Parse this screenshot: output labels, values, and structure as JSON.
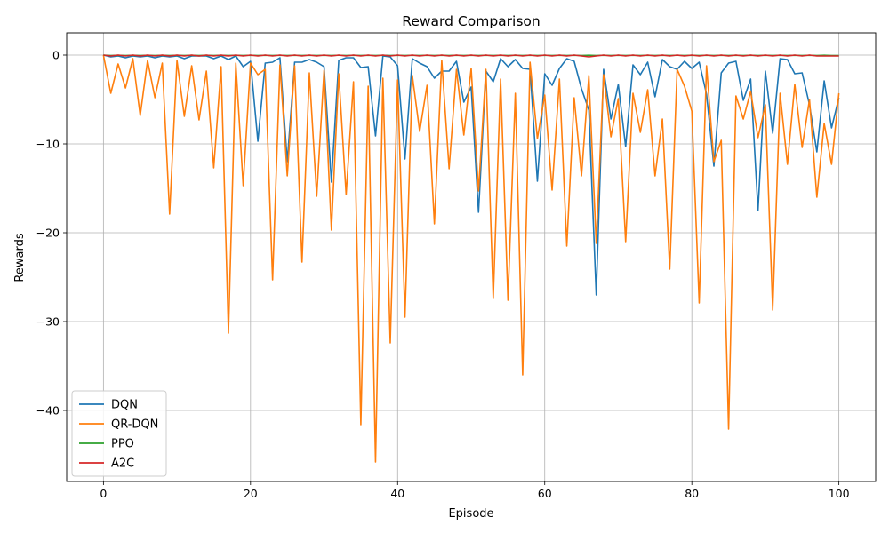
{
  "chart_data": {
    "type": "line",
    "title": "Reward Comparison",
    "xlabel": "Episode",
    "ylabel": "Rewards",
    "xlim": [
      -5,
      105
    ],
    "ylim": [
      -48,
      2.5
    ],
    "xticks": [
      0,
      20,
      40,
      60,
      80,
      100
    ],
    "yticks": [
      0,
      -10,
      -20,
      -30,
      -40
    ],
    "grid": true,
    "legend_position": "lower-left",
    "x": [
      0,
      1,
      2,
      3,
      4,
      5,
      6,
      7,
      8,
      9,
      10,
      11,
      12,
      13,
      14,
      15,
      16,
      17,
      18,
      19,
      20,
      21,
      22,
      23,
      24,
      25,
      26,
      27,
      28,
      29,
      30,
      31,
      32,
      33,
      34,
      35,
      36,
      37,
      38,
      39,
      40,
      41,
      42,
      43,
      44,
      45,
      46,
      47,
      48,
      49,
      50,
      51,
      52,
      53,
      54,
      55,
      56,
      57,
      58,
      59,
      60,
      61,
      62,
      63,
      64,
      65,
      66,
      67,
      68,
      69,
      70,
      71,
      72,
      73,
      74,
      75,
      76,
      77,
      78,
      79,
      80,
      81,
      82,
      83,
      84,
      85,
      86,
      87,
      88,
      89,
      90,
      91,
      92,
      93,
      94,
      95,
      96,
      97,
      98,
      99,
      100
    ],
    "series": [
      {
        "name": "DQN",
        "color": "#1f77b4",
        "values": [
          0,
          -0.2,
          -0.1,
          -0.3,
          -0.1,
          -0.2,
          -0.1,
          -0.3,
          -0.1,
          -0.2,
          -0.1,
          -0.4,
          -0.1,
          -0.1,
          -0.1,
          -0.4,
          -0.1,
          -0.5,
          -0.1,
          -1.3,
          -0.7,
          -9.7,
          -0.9,
          -0.8,
          -0.3,
          -12,
          -0.8,
          -0.8,
          -0.5,
          -0.8,
          -1.3,
          -14.3,
          -0.6,
          -0.3,
          -0.3,
          -1.4,
          -1.3,
          -9.1,
          -0.1,
          -0.2,
          -1.2,
          -11.7,
          -0.4,
          -0.9,
          -1.3,
          -2.6,
          -1.8,
          -1.8,
          -0.7,
          -5.3,
          -3.6,
          -17.7,
          -1.8,
          -3.0,
          -0.4,
          -1.3,
          -0.5,
          -1.5,
          -1.6,
          -14.2,
          -2.1,
          -3.4,
          -1.5,
          -0.4,
          -0.7,
          -3.8,
          -6.2,
          -27,
          -1.6,
          -7.2,
          -3.3,
          -10.3,
          -1.1,
          -2.2,
          -0.8,
          -4.7,
          -0.5,
          -1.3,
          -1.6,
          -0.7,
          -1.5,
          -0.8,
          -4.4,
          -12.5,
          -2.0,
          -0.9,
          -0.7,
          -5.1,
          -2.7,
          -17.5,
          -1.8,
          -8.8,
          -0.4,
          -0.5,
          -2.1,
          -2.0,
          -5.6,
          -10.9,
          -2.9,
          -8.2,
          -4.8
        ]
      },
      {
        "name": "QR-DQN",
        "color": "#ff7f0e",
        "values": [
          0,
          -4.3,
          -1.0,
          -3.7,
          -0.4,
          -6.8,
          -0.6,
          -4.8,
          -0.9,
          -17.9,
          -0.6,
          -6.9,
          -1.2,
          -7.3,
          -1.8,
          -12.7,
          -1.3,
          -31.3,
          -0.9,
          -14.7,
          -0.9,
          -2.2,
          -1.6,
          -25.3,
          -1.1,
          -13.6,
          -1.2,
          -23.3,
          -2.0,
          -15.9,
          -1.7,
          -19.7,
          -2.1,
          -15.7,
          -3.0,
          -41.6,
          -3.5,
          -45.8,
          -2.6,
          -32.4,
          -2.8,
          -29.5,
          -2.3,
          -8.6,
          -3.4,
          -19.0,
          -0.6,
          -12.8,
          -1.6,
          -9.0,
          -1.5,
          -15.3,
          -1.6,
          -27.4,
          -2.7,
          -27.6,
          -4.3,
          -36.0,
          -0.8,
          -9.4,
          -4.5,
          -15.2,
          -2.7,
          -21.5,
          -4.8,
          -13.6,
          -2.3,
          -21.2,
          -2.2,
          -9.2,
          -4.9,
          -21.0,
          -4.3,
          -8.7,
          -3.9,
          -13.6,
          -7.2,
          -24.1,
          -1.6,
          -3.5,
          -6.3,
          -27.9,
          -1.2,
          -12.0,
          -9.6,
          -42.1,
          -4.6,
          -7.2,
          -4.1,
          -9.3,
          -5.6,
          -28.7,
          -4.3,
          -12.3,
          -3.3,
          -10.4,
          -5.0,
          -16.0,
          -7.7,
          -12.3,
          -4.3
        ]
      },
      {
        "name": "PPO",
        "color": "#2ca02c",
        "values": [
          0,
          -0.05,
          -0.02,
          -0.05,
          -0.02,
          -0.05,
          -0.02,
          -0.05,
          -0.02,
          -0.05,
          -0.02,
          -0.05,
          -0.02,
          -0.05,
          -0.02,
          -0.05,
          -0.02,
          -0.05,
          -0.02,
          -0.05,
          -0.02,
          -0.05,
          -0.02,
          -0.05,
          -0.02,
          -0.05,
          -0.02,
          -0.05,
          -0.02,
          -0.05,
          -0.02,
          -0.05,
          -0.02,
          -0.05,
          -0.02,
          -0.05,
          -0.02,
          -0.05,
          -0.02,
          -0.05,
          -0.02,
          -0.05,
          -0.02,
          -0.05,
          -0.02,
          -0.05,
          -0.02,
          -0.05,
          -0.02,
          -0.05,
          -0.02,
          -0.05,
          -0.02,
          -0.05,
          -0.02,
          -0.05,
          -0.02,
          -0.05,
          -0.02,
          -0.05,
          -0.02,
          -0.05,
          -0.02,
          -0.05,
          -0.02,
          -0.05,
          -0.02,
          -0.05,
          -0.02,
          -0.05,
          -0.02,
          -0.05,
          -0.02,
          -0.05,
          -0.02,
          -0.05,
          -0.02,
          -0.05,
          -0.02,
          -0.05,
          -0.02,
          -0.05,
          -0.02,
          -0.05,
          -0.02,
          -0.05,
          -0.02,
          -0.05,
          -0.02,
          -0.05,
          -0.02,
          -0.05,
          -0.02,
          -0.05,
          -0.02,
          -0.05,
          -0.02,
          -0.05,
          -0.02,
          -0.05,
          -0.05
        ]
      },
      {
        "name": "A2C",
        "color": "#d62728",
        "values": [
          0,
          -0.1,
          0,
          -0.1,
          0,
          -0.1,
          0,
          -0.1,
          0,
          -0.1,
          0,
          -0.1,
          0,
          -0.1,
          0,
          -0.1,
          0,
          -0.1,
          0,
          -0.1,
          0,
          -0.1,
          0,
          -0.1,
          0,
          -0.1,
          0,
          -0.1,
          0,
          -0.1,
          0,
          -0.1,
          0,
          -0.1,
          0,
          -0.1,
          0,
          -0.1,
          0,
          -0.1,
          0,
          -0.1,
          0,
          -0.1,
          0,
          -0.1,
          0,
          -0.1,
          0,
          -0.1,
          0,
          -0.1,
          0,
          -0.1,
          0,
          -0.1,
          0,
          -0.1,
          0,
          -0.1,
          0,
          -0.1,
          0,
          -0.1,
          0,
          -0.1,
          -0.2,
          -0.1,
          0,
          -0.1,
          0,
          -0.1,
          0,
          -0.1,
          0,
          -0.1,
          0,
          -0.1,
          0,
          -0.1,
          0,
          -0.1,
          0,
          -0.1,
          0,
          -0.1,
          0,
          -0.1,
          0,
          -0.1,
          0,
          -0.1,
          0,
          -0.1,
          0,
          -0.1,
          0,
          -0.1,
          -0.1,
          -0.1,
          -0.1
        ]
      }
    ]
  }
}
